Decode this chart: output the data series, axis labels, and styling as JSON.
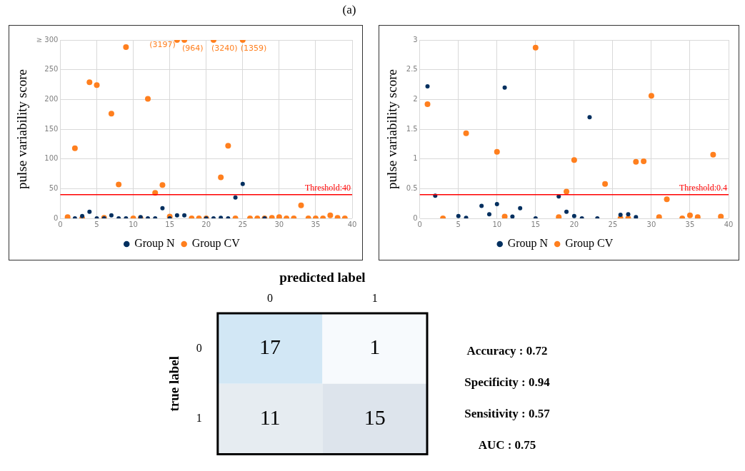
{
  "chart_data": [
    {
      "type": "scatter",
      "title": "(a)",
      "ylabel": "pulse variability score",
      "legend": "bottom",
      "grid": true,
      "marker": "circle",
      "xlim": [
        0,
        40
      ],
      "xticks": [
        0,
        5,
        10,
        15,
        20,
        25,
        30,
        35,
        40
      ],
      "ylim": [
        0,
        300
      ],
      "yticks": [
        0,
        50,
        100,
        150,
        200,
        250,
        {
          "value": 300,
          "label": "≥ 300"
        }
      ],
      "ref_lines": [
        {
          "axis": "y",
          "value": 40,
          "label": "Threshold:40",
          "color": "#ff0000"
        }
      ],
      "annotations": [
        {
          "text": "(3197)",
          "x": 16,
          "y": 300
        },
        {
          "text": "(964)",
          "x": 17,
          "y": 300
        },
        {
          "text": "(3240)",
          "x": 21,
          "y": 300
        },
        {
          "text": "(1359)",
          "x": 25,
          "y": 300
        }
      ],
      "series": [
        {
          "name": "Group N",
          "color": "#002f5f",
          "x": [
            2,
            3,
            4,
            5,
            6,
            7,
            8,
            9,
            11,
            12,
            13,
            14,
            15,
            16,
            17,
            20,
            21,
            22,
            23,
            24,
            25,
            28
          ],
          "values": [
            0,
            4,
            11,
            0,
            0,
            5,
            0,
            0,
            2,
            0,
            0,
            17,
            0,
            5,
            5,
            0,
            0,
            1,
            0,
            35,
            58,
            0
          ]
        },
        {
          "name": "Group CV",
          "color": "#ff7f1e",
          "x": [
            1,
            2,
            3,
            4,
            5,
            6,
            7,
            8,
            9,
            10,
            11,
            12,
            13,
            14,
            15,
            16,
            17,
            18,
            19,
            20,
            21,
            22,
            23,
            24,
            25,
            26,
            27,
            28,
            29,
            30,
            31,
            32,
            33,
            34,
            35,
            36,
            37,
            38,
            39
          ],
          "values": [
            2,
            118,
            0,
            229,
            224,
            1,
            176,
            57,
            288,
            0,
            0,
            201,
            43,
            56,
            3,
            300,
            300,
            0,
            0,
            0,
            300,
            69,
            122,
            0,
            300,
            0,
            0,
            0,
            1,
            2,
            0,
            0,
            22,
            0,
            0,
            0,
            5,
            1,
            0
          ]
        }
      ]
    },
    {
      "type": "scatter",
      "ylabel": "pulse variability score",
      "legend": "bottom",
      "grid": true,
      "marker": "circle",
      "xlim": [
        0,
        40
      ],
      "xticks": [
        0,
        5,
        10,
        15,
        20,
        25,
        30,
        35,
        40
      ],
      "ylim": [
        0,
        3
      ],
      "yticks": [
        0,
        0.5,
        1,
        1.5,
        2,
        2.5,
        3
      ],
      "ref_lines": [
        {
          "axis": "y",
          "value": 0.4,
          "label": "Threshold:0.4",
          "color": "#ff0000"
        }
      ],
      "series": [
        {
          "name": "Group N",
          "color": "#002f5f",
          "x": [
            1,
            2,
            5,
            6,
            8,
            9,
            10,
            11,
            12,
            13,
            15,
            18,
            19,
            20,
            21,
            22,
            23,
            26,
            27,
            28
          ],
          "values": [
            2.22,
            0.38,
            0.04,
            0.01,
            0.21,
            0.07,
            0.24,
            2.2,
            0.03,
            0.17,
            0,
            0.37,
            0.11,
            0.04,
            0,
            1.7,
            0,
            0.06,
            0.07,
            0.02
          ]
        },
        {
          "name": "Group CV",
          "color": "#ff7f1e",
          "x": [
            1,
            3,
            6,
            10,
            11,
            15,
            18,
            19,
            20,
            24,
            26,
            27,
            28,
            29,
            30,
            31,
            32,
            34,
            35,
            36,
            38,
            39
          ],
          "values": [
            1.92,
            0,
            1.43,
            1.12,
            0.03,
            2.87,
            0.02,
            0.45,
            0.98,
            0.58,
            0,
            0,
            0.95,
            0.96,
            2.06,
            0.02,
            0.32,
            0,
            0.05,
            0.02,
            1.07,
            0.03
          ]
        }
      ]
    },
    {
      "type": "heatmap",
      "xlabel": "predicted label",
      "ylabel": "true label",
      "categories": [
        "0",
        "1"
      ],
      "y_categories": [
        "0",
        "1"
      ],
      "cells": [
        [
          17,
          1
        ],
        [
          11,
          15
        ]
      ],
      "data_labels": true,
      "colors": [
        [
          "#d2e7f5",
          "#f7fafd"
        ],
        [
          "#e6ecf1",
          "#dde4ec"
        ]
      ],
      "annotations": [
        "Accuracy : 0.72",
        "Specificity : 0.94",
        "Sensitivity : 0.57",
        "AUC : 0.75"
      ]
    }
  ]
}
